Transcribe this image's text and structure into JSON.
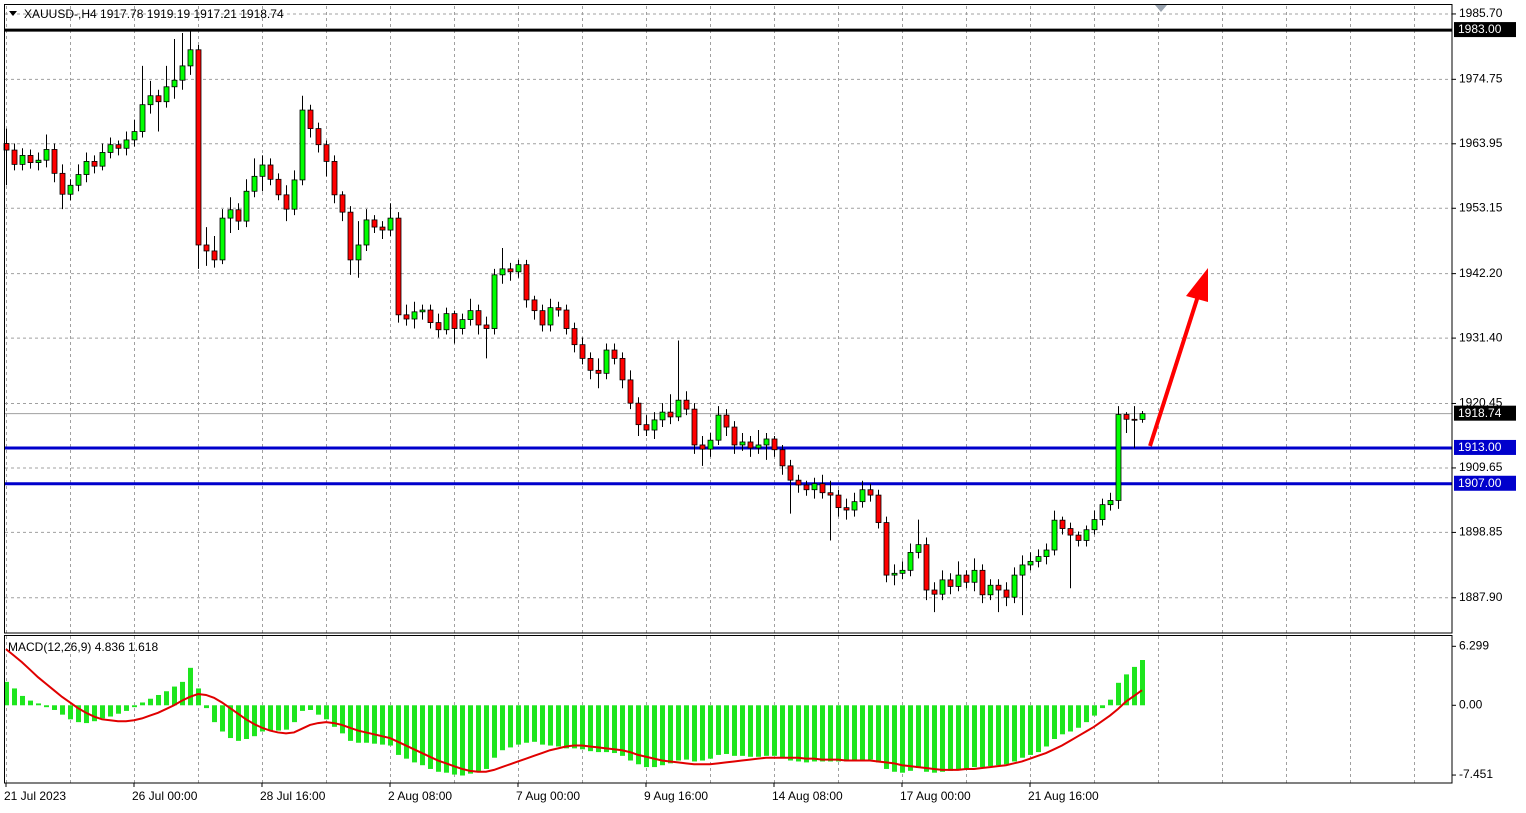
{
  "chart_data": {
    "type": "candlestick",
    "symbol": "XAUUSD-,H4",
    "up_color": "#00ff00",
    "down_color": "#ff0000",
    "grid": true,
    "ylim": [
      1882.0,
      1987.2
    ],
    "yticks": [
      {
        "value": 1985.7,
        "label": "1985.70"
      },
      1974.75,
      1963.95,
      1953.15,
      {
        "value": 1942.2,
        "label": "1942.20"
      },
      {
        "value": 1931.4,
        "label": "1931.40"
      },
      1920.45,
      1909.65,
      1898.85,
      {
        "value": 1887.9,
        "label": "1887.90"
      }
    ],
    "xticks": [
      {
        "value": 0,
        "label": "21 Jul 2023"
      },
      {
        "value": 16,
        "label": "26 Jul 00:00"
      },
      {
        "value": 32,
        "label": "28 Jul 16:00"
      },
      {
        "value": 48,
        "label": "2 Aug 08:00"
      },
      {
        "value": 64,
        "label": "7 Aug 00:00"
      },
      {
        "value": 80,
        "label": "9 Aug 16:00"
      },
      {
        "value": 96,
        "label": "14 Aug 08:00"
      },
      {
        "value": 112,
        "label": "17 Aug 00:00"
      },
      {
        "value": 128,
        "label": "21 Aug 16:00"
      }
    ],
    "levels": [
      {
        "value": 1983,
        "label": "1983.00",
        "color": "#000000"
      },
      {
        "value": 1913,
        "label": "1913.00",
        "color": "#0000cc"
      },
      {
        "value": 1907,
        "label": "1907.00",
        "color": "#0000cc"
      }
    ],
    "open": [
      1964.0,
      1962.9,
      1960.5,
      1962.0,
      1960.8,
      1961.2,
      1963.0,
      1959.0,
      1955.5,
      1957.0,
      1958.8,
      1961.0,
      1960.2,
      1962.5,
      1963.8,
      1963.2,
      1964.6,
      1966.0,
      1970.5,
      1972.0,
      1971.0,
      1973.5,
      1974.6,
      1977.0,
      1979.7,
      1947.0,
      1946.0,
      1944.5,
      1951.5,
      1952.9,
      1951.0,
      1956.0,
      1958.5,
      1960.4,
      1958.0,
      1955.4,
      1953.0,
      1957.9,
      1969.6,
      1966.5,
      1963.8,
      1961.0,
      1955.4,
      1952.5,
      1944.5,
      1947.0,
      1951.2,
      1950.0,
      1949.5,
      1951.5,
      1935.3,
      1934.6,
      1935.8,
      1936.1,
      1934.0,
      1932.8,
      1935.5,
      1933.0,
      1934.5,
      1936.0,
      1933.6,
      1933.0,
      1942.0,
      1943.0,
      1942.5,
      1943.7,
      1937.8,
      1936.0,
      1933.6,
      1936.5,
      1936.1,
      1933.0,
      1930.3,
      1928.0,
      1926.0,
      1925.5,
      1929.4,
      1928.0,
      1924.4,
      1920.5,
      1916.9,
      1916.0,
      1917.7,
      1919.0,
      1918.2,
      1921.0,
      1919.5,
      1913.5,
      1912.8,
      1914.3,
      1918.5,
      1916.5,
      1913.5,
      1914.0,
      1913.0,
      1913.5,
      1914.5,
      1912.7,
      1910.0,
      1907.6,
      1906.8,
      1906.0,
      1907.0,
      1905.5,
      1905.1,
      1903.0,
      1902.6,
      1904.0,
      1906.0,
      1905.1,
      1900.5,
      1891.7,
      1892.0,
      1892.5,
      1895.5,
      1896.8,
      1889.2,
      1888.5,
      1890.9,
      1889.8,
      1891.7,
      1890.5,
      1892.5,
      1888.4,
      1890.0,
      1889.2,
      1888.0,
      1891.7,
      1893.4,
      1894.0,
      1894.8,
      1895.9,
      1900.9,
      1899.5,
      1898.4,
      1897.5,
      1899.3,
      1901.0,
      1903.5,
      1904.2,
      1918.6,
      1917.8,
      1917.78
    ],
    "high": [
      1966.5,
      1964.0,
      1963.2,
      1963.0,
      1962.5,
      1965.5,
      1964.0,
      1960.5,
      1958.0,
      1960.5,
      1962.5,
      1962.0,
      1964.0,
      1965.0,
      1964.5,
      1966.0,
      1968.0,
      1977.0,
      1974.5,
      1973.0,
      1977.0,
      1981.5,
      1982.5,
      1983.0,
      1980.5,
      1950.0,
      1948.5,
      1953.0,
      1955.0,
      1954.0,
      1958.0,
      1961.5,
      1962.0,
      1961.5,
      1959.0,
      1957.0,
      1959.5,
      1972.0,
      1970.5,
      1967.5,
      1964.5,
      1962.0,
      1956.0,
      1953.5,
      1951.0,
      1953.0,
      1952.0,
      1951.0,
      1954.0,
      1952.5,
      1937.0,
      1937.5,
      1937.0,
      1937.0,
      1935.5,
      1936.5,
      1936.0,
      1935.5,
      1938.0,
      1937.0,
      1935.0,
      1943.0,
      1946.5,
      1944.0,
      1944.5,
      1944.5,
      1938.5,
      1937.0,
      1938.0,
      1937.5,
      1937.0,
      1934.0,
      1931.5,
      1929.0,
      1928.0,
      1930.5,
      1930.5,
      1929.0,
      1926.0,
      1921.5,
      1918.5,
      1919.0,
      1920.5,
      1922.0,
      1931.0,
      1922.5,
      1920.5,
      1915.0,
      1915.5,
      1920.0,
      1919.5,
      1917.5,
      1915.5,
      1915.0,
      1916.0,
      1915.5,
      1915.0,
      1913.5,
      1911.0,
      1908.5,
      1907.5,
      1908.0,
      1908.5,
      1907.5,
      1906.0,
      1904.5,
      1905.5,
      1907.5,
      1907.0,
      1906.0,
      1901.5,
      1893.5,
      1894.0,
      1897.0,
      1901.0,
      1898.0,
      1890.5,
      1892.5,
      1892.0,
      1894.0,
      1892.5,
      1894.5,
      1893.5,
      1891.0,
      1891.0,
      1890.5,
      1893.0,
      1895.0,
      1895.5,
      1896.0,
      1897.0,
      1902.5,
      1901.5,
      1900.5,
      1899.0,
      1900.0,
      1902.5,
      1904.5,
      1905.5,
      1920.0,
      1919.0,
      1920.0,
      1919.19
    ],
    "low": [
      1957.0,
      1959.5,
      1959.5,
      1959.8,
      1959.5,
      1960.0,
      1957.5,
      1953.0,
      1954.5,
      1956.0,
      1957.5,
      1959.0,
      1959.5,
      1961.5,
      1962.0,
      1962.0,
      1963.5,
      1965.0,
      1969.0,
      1966.0,
      1970.0,
      1971.5,
      1973.0,
      1975.5,
      1943.0,
      1943.5,
      1943.2,
      1943.8,
      1949.0,
      1949.5,
      1950.0,
      1955.0,
      1956.0,
      1957.0,
      1954.5,
      1951.0,
      1952.0,
      1957.0,
      1965.0,
      1962.5,
      1958.5,
      1954.0,
      1951.0,
      1942.0,
      1941.5,
      1946.0,
      1949.0,
      1948.0,
      1948.5,
      1934.0,
      1933.5,
      1933.0,
      1934.5,
      1933.0,
      1931.5,
      1932.0,
      1930.5,
      1932.0,
      1933.5,
      1932.0,
      1928.0,
      1932.0,
      1940.5,
      1941.0,
      1941.5,
      1936.5,
      1934.5,
      1932.5,
      1932.5,
      1935.0,
      1932.0,
      1929.0,
      1927.0,
      1924.5,
      1923.0,
      1924.5,
      1927.0,
      1923.0,
      1919.5,
      1915.0,
      1915.0,
      1914.5,
      1916.5,
      1917.0,
      1917.5,
      1918.5,
      1912.0,
      1910.0,
      1911.5,
      1913.5,
      1915.0,
      1912.0,
      1912.5,
      1911.5,
      1912.0,
      1911.0,
      1911.5,
      1908.5,
      1902.0,
      1905.5,
      1905.0,
      1904.5,
      1904.5,
      1897.5,
      1901.5,
      1901.0,
      1901.5,
      1903.0,
      1904.0,
      1899.5,
      1890.5,
      1890.0,
      1891.0,
      1891.5,
      1894.5,
      1887.5,
      1885.5,
      1887.5,
      1888.5,
      1889.0,
      1889.5,
      1889.0,
      1887.0,
      1887.5,
      1885.5,
      1886.5,
      1887.0,
      1885.0,
      1892.5,
      1893.0,
      1893.5,
      1895.0,
      1898.5,
      1889.5,
      1896.5,
      1896.5,
      1898.5,
      1900.0,
      1902.5,
      1902.8,
      1915.5,
      1913.0,
      1917.21
    ],
    "close": [
      1962.9,
      1960.5,
      1962.0,
      1960.8,
      1961.2,
      1963.0,
      1959.0,
      1955.5,
      1957.0,
      1958.8,
      1961.0,
      1960.2,
      1962.5,
      1963.8,
      1963.2,
      1964.6,
      1966.0,
      1970.5,
      1972.0,
      1971.0,
      1973.5,
      1974.6,
      1977.0,
      1979.7,
      1947.0,
      1946.0,
      1944.5,
      1951.5,
      1952.9,
      1951.0,
      1956.0,
      1958.5,
      1960.4,
      1958.0,
      1955.4,
      1953.0,
      1957.9,
      1969.6,
      1966.5,
      1963.8,
      1961.0,
      1955.4,
      1952.5,
      1944.5,
      1947.0,
      1951.2,
      1950.0,
      1949.5,
      1951.5,
      1935.3,
      1934.6,
      1935.8,
      1936.1,
      1934.0,
      1932.8,
      1935.5,
      1933.0,
      1934.5,
      1936.0,
      1933.6,
      1933.0,
      1942.0,
      1943.0,
      1942.5,
      1943.7,
      1937.8,
      1936.0,
      1933.6,
      1936.5,
      1936.1,
      1933.0,
      1930.3,
      1928.0,
      1926.0,
      1925.5,
      1929.4,
      1928.0,
      1924.4,
      1920.5,
      1916.9,
      1916.0,
      1917.7,
      1919.0,
      1918.2,
      1921.0,
      1919.5,
      1913.5,
      1912.8,
      1914.3,
      1918.5,
      1916.5,
      1913.5,
      1914.0,
      1913.0,
      1913.5,
      1914.5,
      1912.7,
      1910.0,
      1907.6,
      1906.8,
      1906.0,
      1907.0,
      1905.5,
      1905.1,
      1903.0,
      1902.6,
      1904.0,
      1906.0,
      1905.1,
      1900.5,
      1891.7,
      1892.0,
      1892.5,
      1895.5,
      1896.8,
      1889.2,
      1888.5,
      1890.9,
      1889.8,
      1891.7,
      1890.5,
      1892.5,
      1888.4,
      1890.0,
      1889.2,
      1888.0,
      1891.7,
      1893.4,
      1894.0,
      1894.8,
      1895.9,
      1900.9,
      1899.5,
      1898.4,
      1897.5,
      1899.3,
      1901.0,
      1903.5,
      1904.2,
      1918.6,
      1917.8,
      1917.78,
      1918.74
    ],
    "indicator": {
      "name": "MACD(12,26,9)",
      "histogram_color": "#1ee61e",
      "signal_color": "#e00000",
      "ylim": [
        -8.3,
        7.4
      ],
      "yticks": [
        6.299,
        {
          "value": 0,
          "label": "0.00"
        },
        -7.451
      ],
      "histogram": [
        2.5,
        1.8,
        1.0,
        0.5,
        0.2,
        -0.2,
        -0.5,
        -1.0,
        -1.5,
        -1.8,
        -1.9,
        -1.7,
        -1.4,
        -1.2,
        -0.9,
        -0.6,
        -0.2,
        0.3,
        0.7,
        1.1,
        1.5,
        2.0,
        2.5,
        4.0,
        1.8,
        -0.3,
        -1.8,
        -2.8,
        -3.5,
        -3.8,
        -3.6,
        -3.3,
        -2.8,
        -2.7,
        -2.7,
        -2.6,
        -1.8,
        -0.6,
        -0.5,
        -1.0,
        -1.5,
        -2.3,
        -3.0,
        -3.8,
        -4.0,
        -4.0,
        -4.1,
        -4.2,
        -4.3,
        -5.3,
        -5.7,
        -6.1,
        -6.4,
        -6.8,
        -7.1,
        -7.2,
        -7.4,
        -7.5,
        -7.3,
        -7.1,
        -6.8,
        -5.6,
        -4.8,
        -4.5,
        -4.2,
        -4.0,
        -3.9,
        -4.2,
        -4.3,
        -4.4,
        -4.6,
        -4.6,
        -4.7,
        -4.9,
        -5.0,
        -5.0,
        -5.1,
        -5.4,
        -5.9,
        -6.3,
        -6.6,
        -6.6,
        -6.4,
        -6.2,
        -5.9,
        -5.8,
        -6.0,
        -5.9,
        -5.7,
        -5.3,
        -5.2,
        -5.4,
        -5.4,
        -5.5,
        -5.5,
        -5.4,
        -5.4,
        -5.6,
        -5.9,
        -6.0,
        -6.1,
        -6.0,
        -6.0,
        -6.0,
        -6.0,
        -6.0,
        -5.9,
        -5.8,
        -5.8,
        -6.1,
        -6.8,
        -7.1,
        -7.2,
        -7.0,
        -6.7,
        -7.1,
        -7.2,
        -7.1,
        -7.0,
        -6.9,
        -6.8,
        -6.6,
        -6.6,
        -6.5,
        -6.4,
        -6.3,
        -6.0,
        -5.6,
        -5.3,
        -5.0,
        -4.4,
        -3.6,
        -3.1,
        -2.8,
        -2.4,
        -1.8,
        -1.1,
        -0.3,
        0.6,
        2.4,
        3.3,
        4.1,
        4.836
      ],
      "signal": [
        6.0,
        5.3,
        4.6,
        3.8,
        3.0,
        2.3,
        1.6,
        0.9,
        0.3,
        -0.3,
        -0.8,
        -1.2,
        -1.5,
        -1.6,
        -1.7,
        -1.7,
        -1.6,
        -1.4,
        -1.1,
        -0.8,
        -0.4,
        0.0,
        0.5,
        0.9,
        1.2,
        1.1,
        0.8,
        0.3,
        -0.3,
        -0.9,
        -1.5,
        -2.0,
        -2.4,
        -2.7,
        -2.9,
        -3.0,
        -2.9,
        -2.5,
        -2.1,
        -1.9,
        -1.8,
        -1.9,
        -2.1,
        -2.4,
        -2.7,
        -2.9,
        -3.1,
        -3.3,
        -3.5,
        -3.9,
        -4.3,
        -4.7,
        -5.1,
        -5.5,
        -5.9,
        -6.2,
        -6.5,
        -6.8,
        -7.0,
        -7.1,
        -7.1,
        -6.9,
        -6.6,
        -6.3,
        -6.0,
        -5.7,
        -5.4,
        -5.1,
        -4.8,
        -4.6,
        -4.4,
        -4.3,
        -4.3,
        -4.4,
        -4.5,
        -4.6,
        -4.7,
        -4.8,
        -5.0,
        -5.3,
        -5.5,
        -5.7,
        -5.9,
        -6.0,
        -6.1,
        -6.2,
        -6.3,
        -6.3,
        -6.3,
        -6.2,
        -6.1,
        -6.0,
        -5.9,
        -5.8,
        -5.7,
        -5.6,
        -5.6,
        -5.6,
        -5.6,
        -5.6,
        -5.7,
        -5.7,
        -5.8,
        -5.8,
        -5.8,
        -5.9,
        -5.9,
        -5.9,
        -5.9,
        -6.0,
        -6.1,
        -6.2,
        -6.4,
        -6.5,
        -6.6,
        -6.7,
        -6.8,
        -6.9,
        -6.9,
        -6.9,
        -6.8,
        -6.8,
        -6.7,
        -6.6,
        -6.5,
        -6.4,
        -6.2,
        -6.0,
        -5.7,
        -5.4,
        -5.1,
        -4.7,
        -4.3,
        -3.8,
        -3.3,
        -2.8,
        -2.3,
        -1.7,
        -1.1,
        -0.4,
        0.4,
        1.0,
        1.618
      ]
    }
  }
}
